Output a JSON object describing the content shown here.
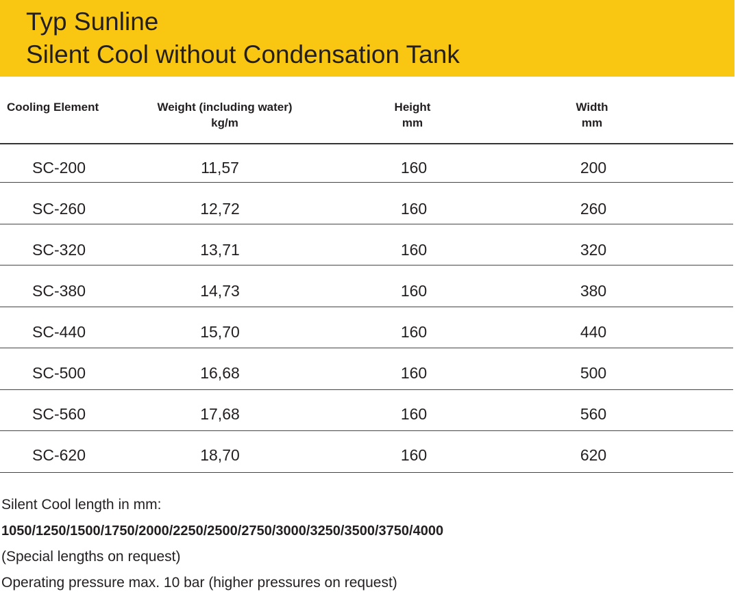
{
  "header": {
    "title": [
      "Typ Sunline",
      "Silent Cool without Condensation Tank"
    ]
  },
  "table": {
    "columns": [
      [
        "Cooling Element"
      ],
      [
        "Weight (including water)",
        "kg/m"
      ],
      [
        "Height",
        "mm"
      ],
      [
        "Width",
        "mm"
      ]
    ],
    "rows": [
      [
        "SC-200",
        "11,57",
        "160",
        "200"
      ],
      [
        "SC-260",
        "12,72",
        "160",
        "260"
      ],
      [
        "SC-320",
        "13,71",
        "160",
        "320"
      ],
      [
        "SC-380",
        "14,73",
        "160",
        "380"
      ],
      [
        "SC-440",
        "15,70",
        "160",
        "440"
      ],
      [
        "SC-500",
        "16,68",
        "160",
        "500"
      ],
      [
        "SC-560",
        "17,68",
        "160",
        "560"
      ],
      [
        "SC-620",
        "18,70",
        "160",
        "620"
      ]
    ]
  },
  "notes": {
    "length_label": "Silent Cool length in mm:",
    "lengths": "1050/1250/1500/1750/2000/2250/2500/2750/3000/3250/3500/3750/4000",
    "special": "(Special lengths on request)",
    "pressure": "Operating pressure max. 10 bar (higher pressures on request)"
  }
}
